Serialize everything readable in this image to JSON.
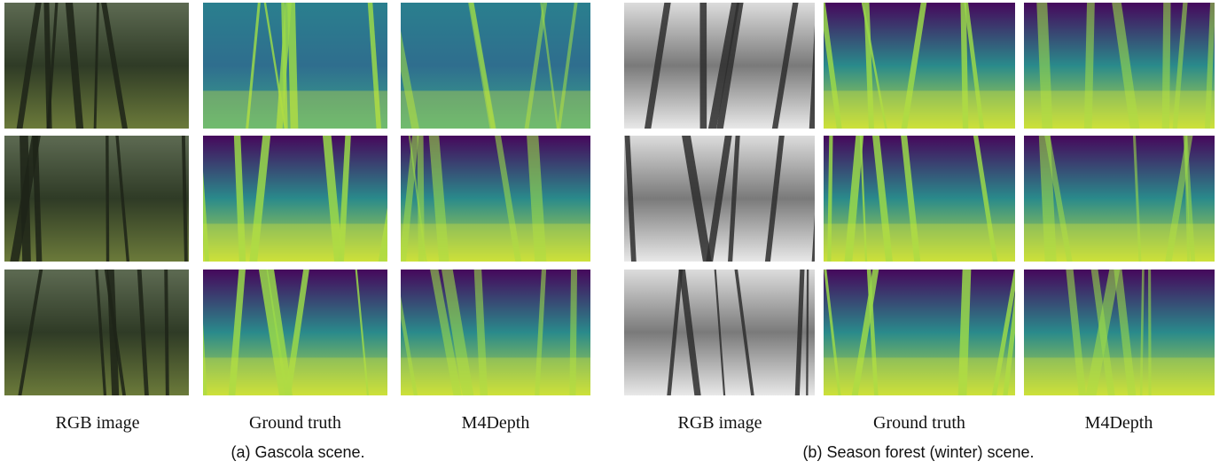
{
  "panels": [
    {
      "columns": [
        "RGB image",
        "Ground truth",
        "M4Depth"
      ],
      "caption": "(a) Gascola scene."
    },
    {
      "columns": [
        "RGB image",
        "Ground truth",
        "M4Depth"
      ],
      "caption": "(b) Season forest (winter) scene."
    }
  ]
}
